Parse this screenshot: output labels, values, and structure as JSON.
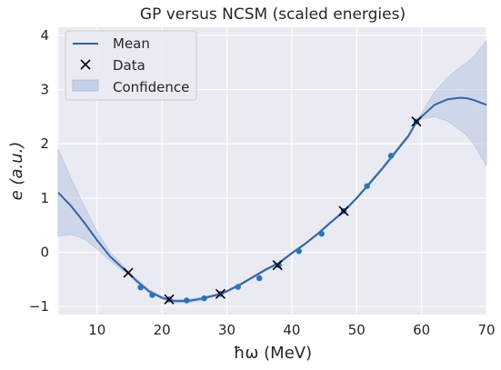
{
  "chart_data": {
    "type": "line",
    "title": "GP versus NCSM (scaled energies)",
    "xlabel": "ħω (MeV)",
    "ylabel": "e (a.u.)",
    "xlim": [
      4,
      70
    ],
    "ylim": [
      -1.15,
      4.15
    ],
    "xticks": [
      10,
      20,
      30,
      40,
      50,
      60,
      70
    ],
    "yticks": [
      -1,
      0,
      1,
      2,
      3,
      4
    ],
    "grid": true,
    "legend_position": "top-left",
    "legend": [
      "Mean",
      "Data",
      "Confidence"
    ],
    "colors": {
      "background": "#eaeaf2",
      "grid": "#ffffff",
      "mean": "#3465a4",
      "band": "#b7c6e2",
      "ncsm": "#2a73b8",
      "data_marker": "#000000"
    },
    "series": [
      {
        "name": "Mean",
        "kind": "line",
        "x": [
          4,
          6,
          8,
          10,
          12,
          14,
          15,
          16,
          18,
          20,
          21.1,
          22,
          24,
          26,
          28,
          29,
          30,
          32,
          34,
          36,
          38,
          40,
          42,
          44,
          46,
          48,
          50,
          52,
          54,
          56,
          58,
          59.2,
          60,
          62,
          64,
          66,
          67,
          68,
          70
        ],
        "y": [
          1.1,
          0.85,
          0.55,
          0.22,
          -0.08,
          -0.3,
          -0.4,
          -0.52,
          -0.72,
          -0.84,
          -0.88,
          -0.9,
          -0.9,
          -0.86,
          -0.8,
          -0.77,
          -0.72,
          -0.6,
          -0.46,
          -0.32,
          -0.2,
          -0.02,
          0.15,
          0.34,
          0.55,
          0.75,
          1.0,
          1.27,
          1.55,
          1.85,
          2.15,
          2.4,
          2.5,
          2.72,
          2.82,
          2.85,
          2.84,
          2.81,
          2.72
        ]
      },
      {
        "name": "Confidence",
        "kind": "band",
        "x": [
          4,
          6,
          8,
          10,
          12,
          14,
          15,
          16,
          18,
          20,
          21.1,
          22,
          24,
          26,
          28,
          29,
          30,
          32,
          34,
          36,
          38,
          40,
          42,
          44,
          46,
          48,
          50,
          52,
          54,
          56,
          58,
          59.2,
          60,
          62,
          64,
          66,
          67,
          68,
          70
        ],
        "upper": [
          1.9,
          1.35,
          0.85,
          0.38,
          0.0,
          -0.25,
          -0.38,
          -0.48,
          -0.69,
          -0.82,
          -0.86,
          -0.87,
          -0.87,
          -0.83,
          -0.78,
          -0.75,
          -0.7,
          -0.58,
          -0.44,
          -0.3,
          -0.18,
          0.0,
          0.17,
          0.36,
          0.57,
          0.77,
          1.02,
          1.3,
          1.58,
          1.88,
          2.18,
          2.42,
          2.56,
          2.95,
          3.22,
          3.42,
          3.5,
          3.6,
          3.9
        ],
        "lower": [
          0.3,
          0.33,
          0.25,
          0.06,
          -0.16,
          -0.35,
          -0.42,
          -0.56,
          -0.75,
          -0.86,
          -0.9,
          -0.93,
          -0.93,
          -0.89,
          -0.82,
          -0.79,
          -0.74,
          -0.62,
          -0.48,
          -0.34,
          -0.22,
          -0.04,
          0.13,
          0.32,
          0.53,
          0.73,
          0.98,
          1.24,
          1.52,
          1.82,
          2.12,
          2.38,
          2.46,
          2.5,
          2.42,
          2.25,
          2.15,
          2.0,
          1.6
        ]
      },
      {
        "name": "Data",
        "kind": "marker-x",
        "x": [
          14.8,
          21.1,
          29.0,
          37.8,
          48.0,
          59.2
        ],
        "y": [
          -0.38,
          -0.87,
          -0.77,
          -0.24,
          0.76,
          2.41
        ]
      },
      {
        "name": "",
        "kind": "dots",
        "x": [
          16.7,
          18.5,
          21.1,
          23.8,
          26.5,
          29.0,
          31.7,
          35.0,
          38.0,
          41.1,
          44.6,
          48.0,
          51.6,
          55.3,
          59.2
        ],
        "y": [
          -0.65,
          -0.79,
          -0.87,
          -0.89,
          -0.85,
          -0.77,
          -0.64,
          -0.48,
          -0.24,
          0.02,
          0.34,
          0.76,
          1.22,
          1.78,
          2.41
        ]
      }
    ]
  }
}
